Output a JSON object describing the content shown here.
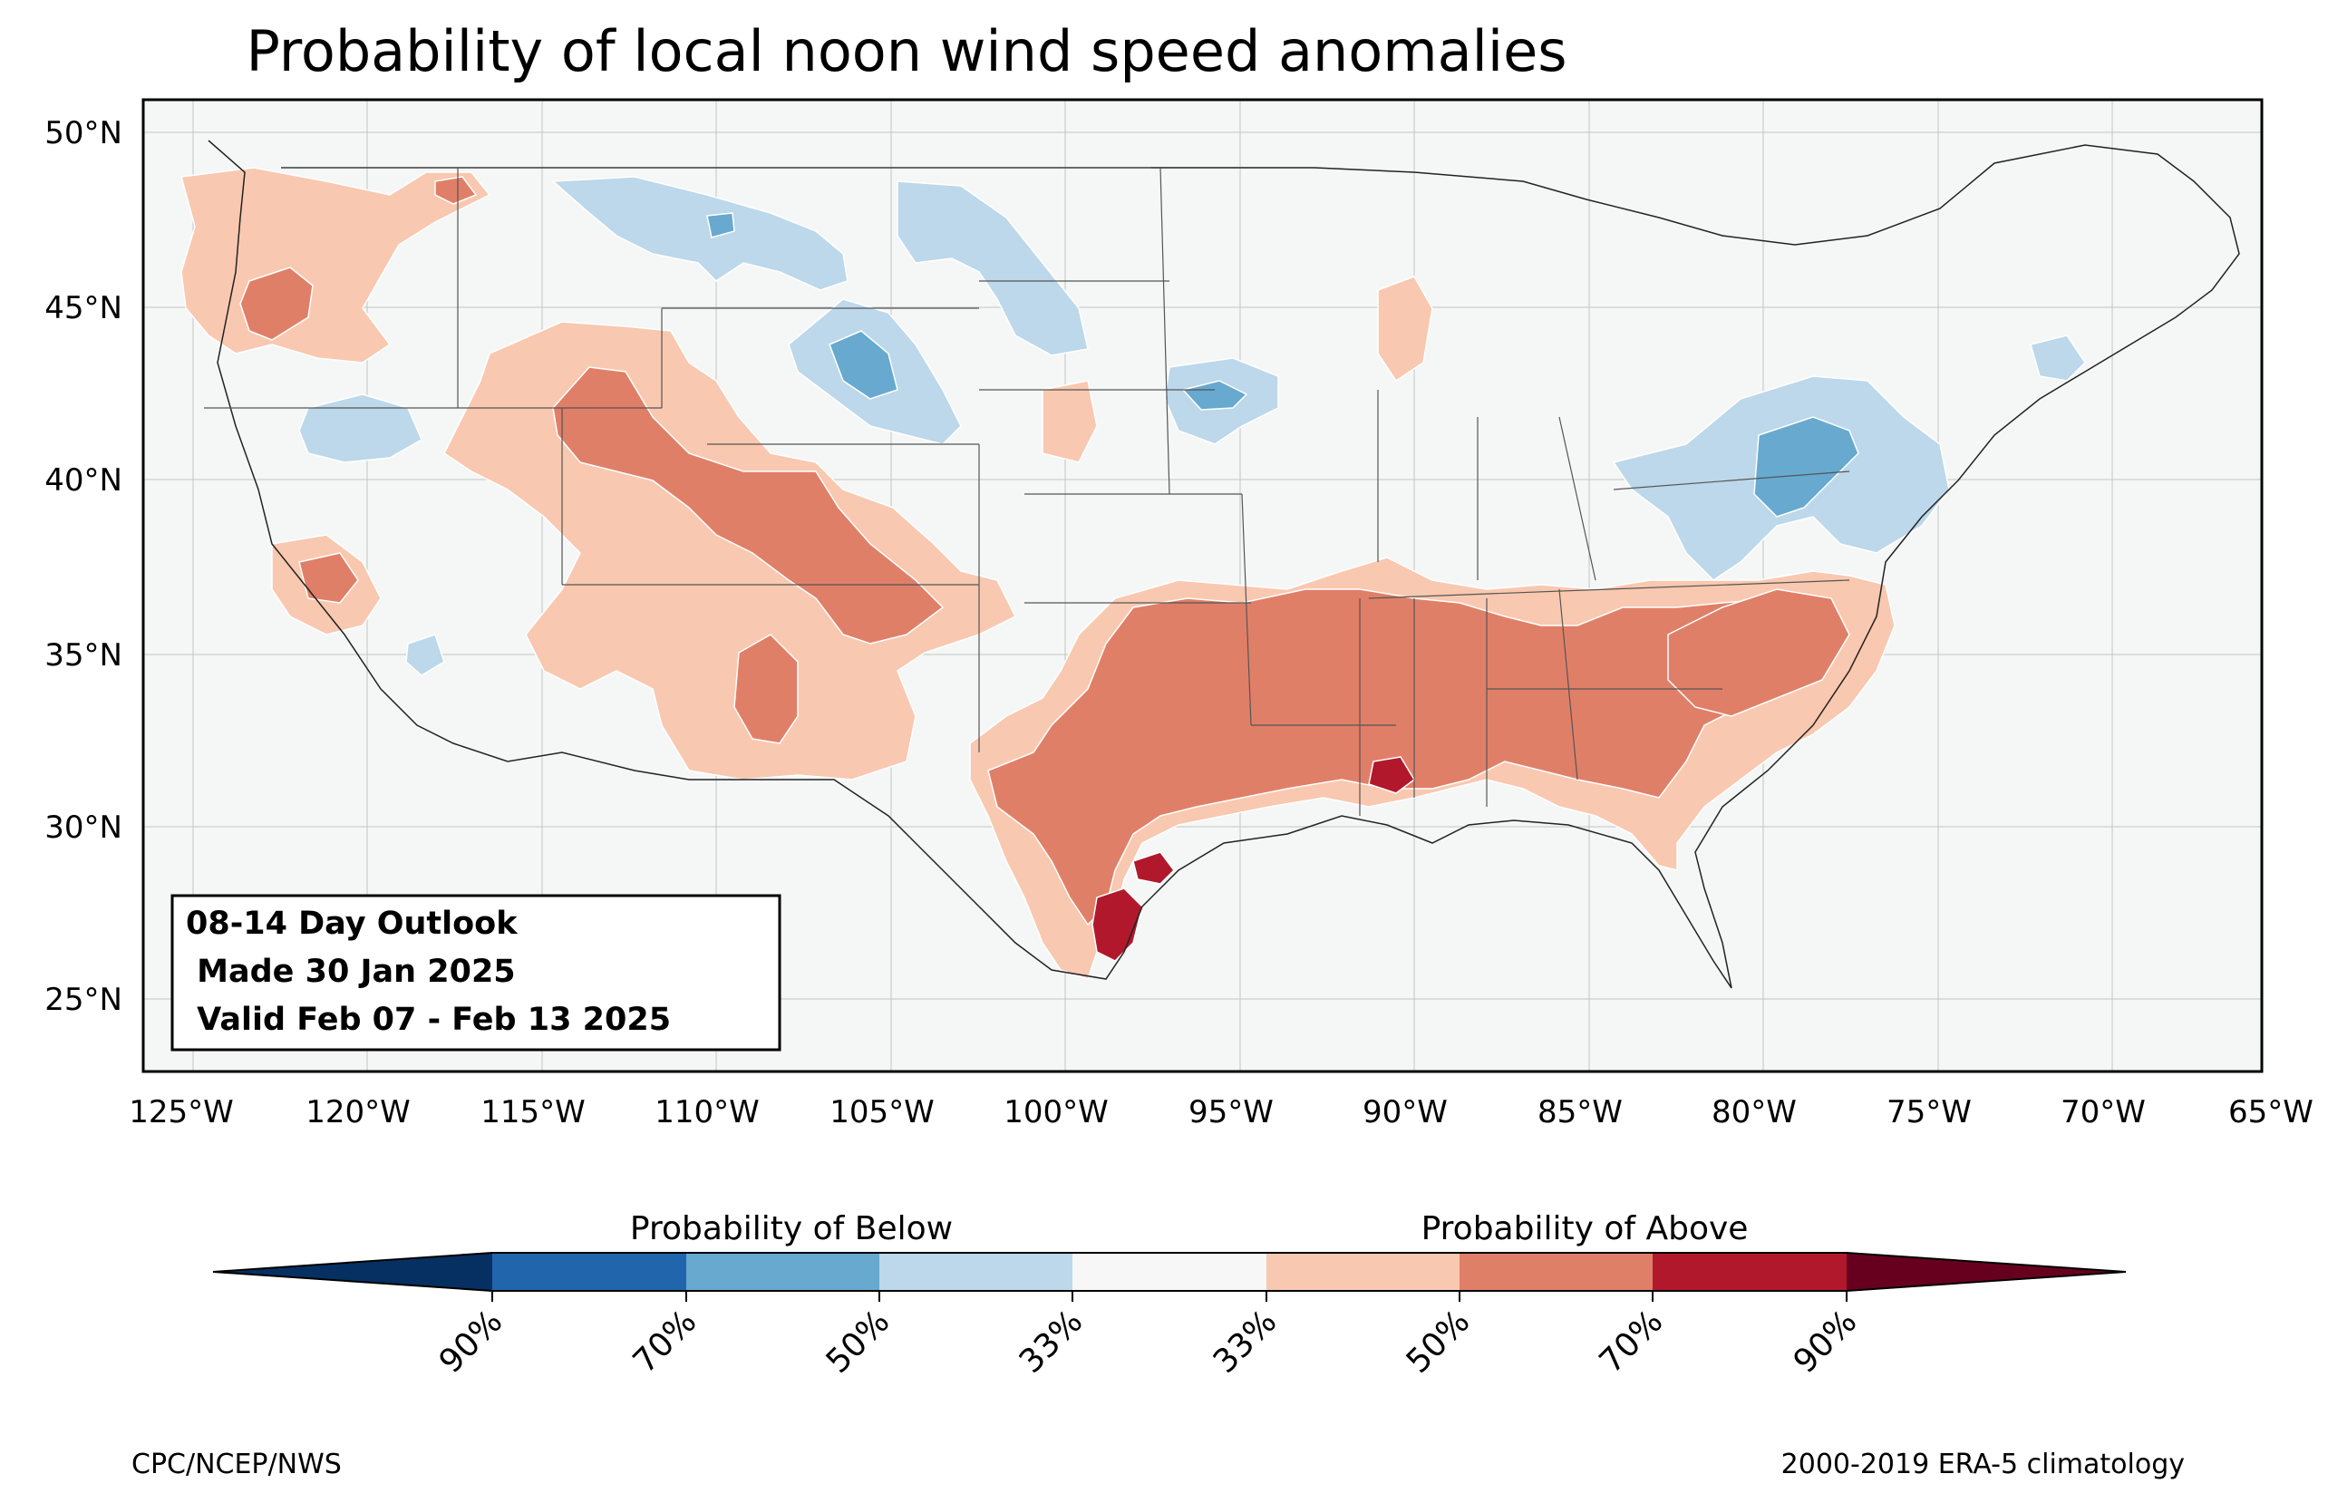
{
  "title": "Probability of local noon wind speed anomalies",
  "outlook_box": {
    "line1": "08-14 Day Outlook",
    "line2": " Made 30 Jan 2025",
    "line3": " Valid Feb 07 - Feb 13 2025"
  },
  "lat_labels": [
    "50°N",
    "45°N",
    "40°N",
    "35°N",
    "30°N",
    "25°N"
  ],
  "lon_labels": [
    "125°W",
    "120°W",
    "115°W",
    "110°W",
    "105°W",
    "100°W",
    "95°W",
    "90°W",
    "85°W",
    "80°W",
    "75°W",
    "70°W",
    "65°W"
  ],
  "colorbar": {
    "below_label": "Probability of Below",
    "above_label": "Probability of Above",
    "tick_labels": [
      "90%",
      "70%",
      "50%",
      "33%",
      "33%",
      "50%",
      "70%",
      "90%"
    ],
    "colors": [
      "#053061",
      "#2166ac",
      "#67a9cf",
      "#bcd8ea",
      "#f7f7f7",
      "#f9c8b0",
      "#e07f68",
      "#b2182b",
      "#67001f"
    ]
  },
  "footer": {
    "left": "CPC/NCEP/NWS",
    "right": "2000-2019 ERA-5 climatology"
  }
}
